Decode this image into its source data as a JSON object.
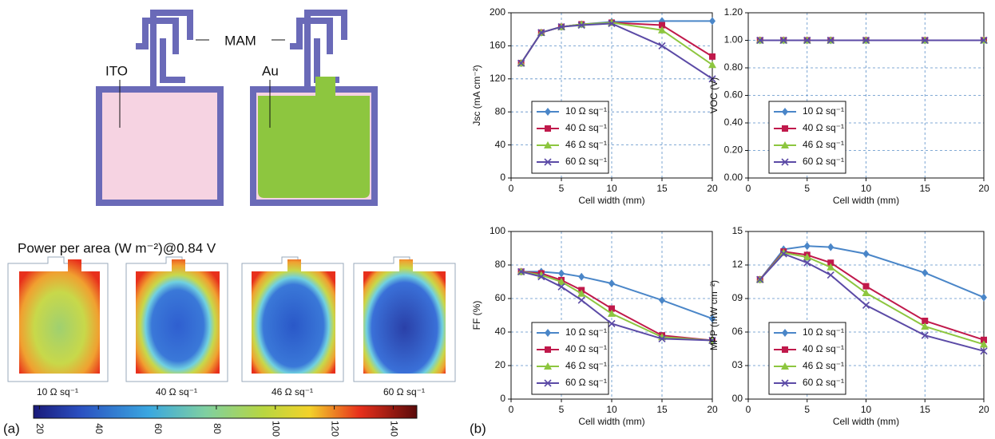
{
  "diagram": {
    "labels": [
      "MAM",
      "ITO",
      "Au"
    ]
  },
  "heatmaps": {
    "title": "Power per area (W m⁻²)@0.84 V",
    "labels": [
      "10 Ω sq⁻¹",
      "40 Ω sq⁻¹",
      "46 Ω sq⁻¹",
      "60 Ω sq⁻¹"
    ]
  },
  "colorbar": {
    "lim": [
      18,
      148
    ],
    "ticks": [
      20,
      40,
      60,
      80,
      100,
      120,
      140
    ]
  },
  "panel_labels": [
    "(a)",
    "(b)"
  ],
  "chart_data": [
    {
      "type": "line",
      "ylabel": "Jsc (mA cm⁻²)",
      "xlabel": "Cell width (mm)",
      "x": [
        1,
        3,
        5,
        7,
        10,
        15,
        20
      ],
      "xlim": [
        0,
        20
      ],
      "xticks": [
        0,
        5,
        10,
        15,
        20
      ],
      "ylim": [
        0,
        200
      ],
      "yticks": [
        0,
        40,
        80,
        120,
        160,
        200
      ],
      "grid": true,
      "legend": "lower left",
      "series": [
        {
          "name": "10 Ω sq⁻¹",
          "color": "#4a86c8",
          "marker": "diamond",
          "values": [
            139,
            176,
            183,
            186,
            189,
            190,
            190
          ]
        },
        {
          "name": "40 Ω sq⁻¹",
          "color": "#c0194b",
          "marker": "square",
          "values": [
            139,
            176,
            183,
            186,
            188,
            185,
            147
          ]
        },
        {
          "name": "46 Ω sq⁻¹",
          "color": "#8dc63f",
          "marker": "triangle",
          "values": [
            139,
            176,
            183,
            186,
            188,
            179,
            137
          ]
        },
        {
          "name": "60 Ω sq⁻¹",
          "color": "#5b4aa6",
          "marker": "x",
          "values": [
            139,
            176,
            183,
            185,
            187,
            160,
            120
          ]
        }
      ]
    },
    {
      "type": "line",
      "ylabel": "VOC (V)",
      "xlabel": "Cell width (mm)",
      "x": [
        1,
        3,
        5,
        7,
        10,
        15,
        20
      ],
      "xlim": [
        0,
        20
      ],
      "xticks": [
        0,
        5,
        10,
        15,
        20
      ],
      "ylim": [
        0,
        1.2
      ],
      "yticks": [
        {
          "value": 0,
          "label": "0.00"
        },
        {
          "value": 0.2,
          "label": "0.20"
        },
        {
          "value": 0.4,
          "label": "0.40"
        },
        {
          "value": 0.6,
          "label": "0.60"
        },
        {
          "value": 0.8,
          "label": "0.80"
        },
        {
          "value": 1,
          "label": "1.00"
        },
        {
          "value": 1.2,
          "label": "1.20"
        }
      ],
      "grid": true,
      "legend": "lower left",
      "series": [
        {
          "name": "10 Ω sq⁻¹",
          "color": "#4a86c8",
          "marker": "diamond",
          "values": [
            1,
            1,
            1,
            1,
            1,
            1,
            1
          ]
        },
        {
          "name": "40 Ω sq⁻¹",
          "color": "#c0194b",
          "marker": "square",
          "values": [
            1,
            1,
            1,
            1,
            1,
            1,
            1
          ]
        },
        {
          "name": "46 Ω sq⁻¹",
          "color": "#8dc63f",
          "marker": "triangle",
          "values": [
            1,
            1,
            1,
            1,
            1,
            1,
            1
          ]
        },
        {
          "name": "60 Ω sq⁻¹",
          "color": "#5b4aa6",
          "marker": "x",
          "values": [
            1,
            1,
            1,
            1,
            1,
            1,
            1
          ]
        }
      ]
    },
    {
      "type": "line",
      "ylabel": "FF (%)",
      "xlabel": "Cell width (mm)",
      "x": [
        1,
        3,
        5,
        7,
        10,
        15,
        20
      ],
      "xlim": [
        0,
        20
      ],
      "xticks": [
        0,
        5,
        10,
        15,
        20
      ],
      "ylim": [
        0,
        100
      ],
      "yticks": [
        0,
        20,
        40,
        60,
        80,
        100
      ],
      "grid": true,
      "legend": "lower left",
      "series": [
        {
          "name": "10 Ω sq⁻¹",
          "color": "#4a86c8",
          "marker": "diamond",
          "values": [
            76,
            76,
            75,
            73,
            69,
            59,
            48
          ]
        },
        {
          "name": "40 Ω sq⁻¹",
          "color": "#c0194b",
          "marker": "square",
          "values": [
            76,
            75,
            71,
            65,
            54,
            38,
            35
          ]
        },
        {
          "name": "46 Ω sq⁻¹",
          "color": "#8dc63f",
          "marker": "triangle",
          "values": [
            76,
            74,
            70,
            63,
            51,
            37,
            35
          ]
        },
        {
          "name": "60 Ω sq⁻¹",
          "color": "#5b4aa6",
          "marker": "x",
          "values": [
            76,
            73,
            67,
            59,
            45,
            36,
            35
          ]
        }
      ]
    },
    {
      "type": "line",
      "ylabel": "MPP (mW cm⁻²)",
      "xlabel": "Cell width (mm)",
      "x": [
        1,
        3,
        5,
        7,
        10,
        15,
        20
      ],
      "xlim": [
        0,
        20
      ],
      "xticks": [
        0,
        5,
        10,
        15,
        20
      ],
      "ylim": [
        0,
        15
      ],
      "yticks": [
        {
          "value": 0,
          "label": "00"
        },
        {
          "value": 3,
          "label": "03"
        },
        {
          "value": 6,
          "label": "06"
        },
        {
          "value": 9,
          "label": "09"
        },
        12,
        15
      ],
      "grid": true,
      "legend": "lower left",
      "series": [
        {
          "name": "10 Ω sq⁻¹",
          "color": "#4a86c8",
          "marker": "diamond",
          "values": [
            10.7,
            13.4,
            13.7,
            13.6,
            13.0,
            11.3,
            9.1
          ]
        },
        {
          "name": "40 Ω sq⁻¹",
          "color": "#c0194b",
          "marker": "square",
          "values": [
            10.7,
            13.2,
            12.9,
            12.2,
            10.1,
            7.0,
            5.3
          ]
        },
        {
          "name": "46 Ω sq⁻¹",
          "color": "#8dc63f",
          "marker": "triangle",
          "values": [
            10.7,
            13.1,
            12.7,
            11.8,
            9.5,
            6.5,
            4.9
          ]
        },
        {
          "name": "60 Ω sq⁻¹",
          "color": "#5b4aa6",
          "marker": "x",
          "values": [
            10.7,
            13.0,
            12.2,
            11.1,
            8.4,
            5.7,
            4.3
          ]
        }
      ]
    }
  ]
}
